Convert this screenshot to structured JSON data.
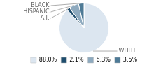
{
  "chart_data": {
    "type": "pie",
    "categories": [
      "WHITE",
      "A.I.",
      "HISPANIC",
      "BLACK"
    ],
    "values": [
      88.0,
      2.1,
      6.3,
      3.5
    ],
    "value_labels": [
      "88.0%",
      "2.1%",
      "6.3%",
      "3.5%"
    ],
    "colors": [
      "#dce6f0",
      "#1f4e6e",
      "#8eaabf",
      "#4e7a96"
    ],
    "legend": "bottom"
  }
}
